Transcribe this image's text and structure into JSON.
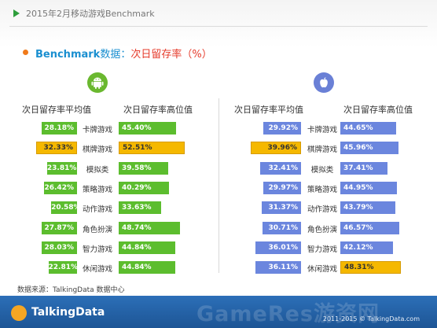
{
  "header": {
    "title": "2015年2月移动游戏Benchmark"
  },
  "subtitle": {
    "part1": "Benchmark",
    "part2": "数据：",
    "part3": "次日留存率（%）"
  },
  "platforms": [
    {
      "name": "android-icon",
      "color": "#6ab82f"
    },
    {
      "name": "apple-icon",
      "color": "#6a80d6"
    }
  ],
  "column_headers": {
    "android_avg": "次日留存率平均值",
    "android_high": "次日留存率高位值",
    "ios_avg": "次日留存率平均值",
    "ios_high": "次日留存率高位值"
  },
  "colors": {
    "android": "#5cbd2e",
    "ios": "#6b86de",
    "highlight": "#f5b800"
  },
  "chart_data": {
    "type": "bar",
    "title": "",
    "xlabel": "",
    "ylabel": "",
    "categories": [
      "卡牌游戏",
      "棋牌游戏",
      "模拟类",
      "策略游戏",
      "动作游戏",
      "角色扮演",
      "智力游戏",
      "休闲游戏"
    ],
    "series": [
      {
        "name": "次日留存率平均值",
        "platform": "android",
        "values": [
          28.18,
          32.33,
          23.81,
          26.42,
          20.58,
          27.87,
          28.03,
          22.81
        ],
        "labels": [
          "28.18%",
          "32.33%",
          "23.81%",
          "26.42%",
          "20.58%",
          "27.87%",
          "28.03%",
          "22.81%"
        ],
        "highlight_index": 1
      },
      {
        "name": "次日留存率高位值",
        "platform": "android",
        "values": [
          45.4,
          52.51,
          39.58,
          40.29,
          33.63,
          48.74,
          44.84,
          44.84
        ],
        "labels": [
          "45.40%",
          "52.51%",
          "39.58%",
          "40.29%",
          "33.63%",
          "48.74%",
          "44.84%",
          "44.84%"
        ],
        "highlight_index": 1
      },
      {
        "name": "次日留存率平均值",
        "platform": "ios",
        "values": [
          29.92,
          39.96,
          32.41,
          29.97,
          31.37,
          30.71,
          36.01,
          36.11
        ],
        "labels": [
          "29.92%",
          "39.96%",
          "32.41%",
          "29.97%",
          "31.37%",
          "30.71%",
          "36.01%",
          "36.11%"
        ],
        "highlight_index": 1
      },
      {
        "name": "次日留存率高位值",
        "platform": "ios",
        "values": [
          44.65,
          45.96,
          37.41,
          44.95,
          43.79,
          46.57,
          42.12,
          48.31
        ],
        "labels": [
          "44.65%",
          "45.96%",
          "37.41%",
          "44.95%",
          "43.79%",
          "46.57%",
          "42.12%",
          "48.31%"
        ],
        "highlight_index": 7
      }
    ]
  },
  "source": "数据来源：TalkingData 数据中心",
  "footer": {
    "logo": "TalkingData",
    "watermark": "GameRes游资网",
    "copyright": "2011-2015 © TalkingData.com"
  }
}
